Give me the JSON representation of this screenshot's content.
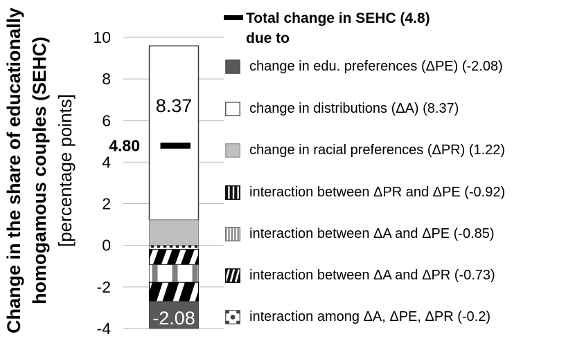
{
  "chart_data": {
    "type": "bar",
    "ylabel": "Change in the share of educationally homogamous couples (SEHC) [percentage points]",
    "ylabel_lines": [
      "Change in the share of educationally",
      "homogamous couples (SEHC)",
      "[percentage points]"
    ],
    "ylim": [
      -4,
      10
    ],
    "yticks": [
      10,
      8,
      6,
      4,
      2,
      0,
      -2,
      -4
    ],
    "grid": true,
    "total_marker": {
      "label": "4.80",
      "value": 4.8,
      "legend_value_text": "(4.8)"
    },
    "bar_labels": [
      {
        "text": "8.37",
        "value": 6.7,
        "color": "#000000",
        "bold": false
      },
      {
        "text": "-2.08",
        "value": -3.5,
        "color": "#ffffff",
        "bold": false
      }
    ],
    "segments": [
      {
        "name": "change in distributions (ΔA)",
        "value": 8.37,
        "pattern": "solid-white"
      },
      {
        "name": "change in racial preferences (ΔPR)",
        "value": 1.22,
        "pattern": "solid-light"
      },
      {
        "name": "interaction among ΔA, ΔPE, ΔPR",
        "value": -0.2,
        "pattern": "dots"
      },
      {
        "name": "interaction between ΔA and ΔPR",
        "value": -0.73,
        "pattern": "diag-thin"
      },
      {
        "name": "interaction between ΔA and ΔPE",
        "value": -0.85,
        "pattern": "vbars-gray"
      },
      {
        "name": "interaction between ΔPR and ΔPE",
        "value": -0.92,
        "pattern": "diag-thick"
      },
      {
        "name": "change in edu. preferences (ΔPE)",
        "value": -2.08,
        "pattern": "solid-dark"
      }
    ],
    "legend": {
      "title": "Total change in SEHC (4.8)",
      "subtitle": "due to",
      "items": [
        {
          "label": "change in edu. preferences (ΔPE) (-2.08)",
          "glyph": "solid-dark"
        },
        {
          "label": "change in distributions (ΔA) (8.37)",
          "glyph": "solid-white"
        },
        {
          "label": "change in racial preferences (ΔPR) (1.22)",
          "glyph": "solid-light"
        },
        {
          "label": "interaction between ΔPR and ΔPE (-0.92)",
          "glyph": "vbars-black"
        },
        {
          "label": "interaction between ΔA and ΔPE (-0.85)",
          "glyph": "vbars-gray-thin"
        },
        {
          "label": "interaction between ΔA and ΔPR (-0.73)",
          "glyph": "diag-black"
        },
        {
          "label": "interaction among ΔA, ΔPE, ΔPR (-0.2)",
          "glyph": "dots-grid"
        }
      ]
    },
    "colors": {
      "dark_gray": "#595959",
      "light_gray": "#bfbfbf",
      "mid_gray": "#808080",
      "gridline": "#b3b3b3",
      "black": "#000000",
      "white": "#ffffff"
    }
  }
}
